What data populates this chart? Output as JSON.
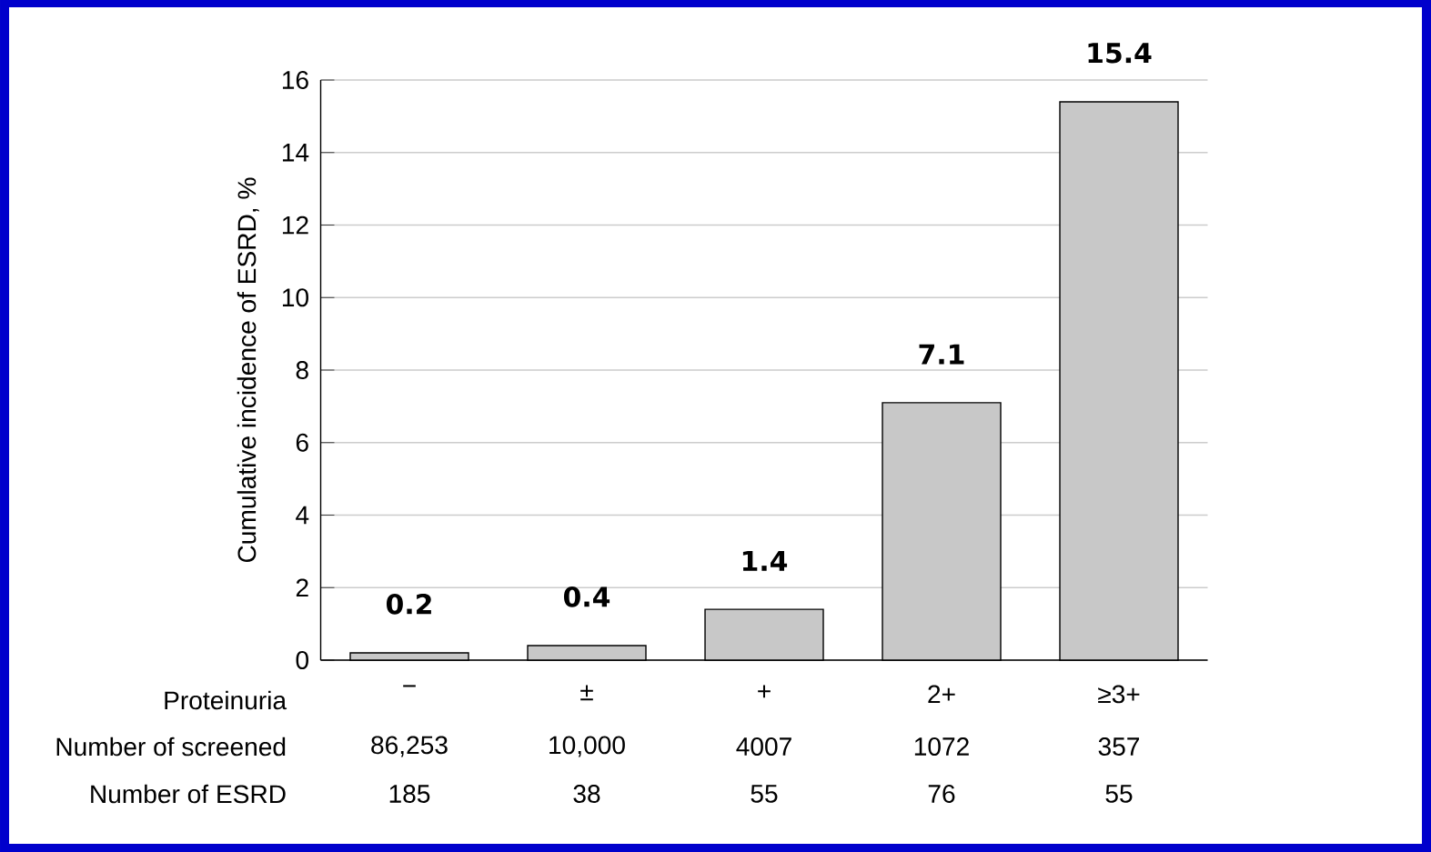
{
  "chart_data": {
    "type": "bar",
    "ylabel": "Cumulative incidence of ESRD, %",
    "xlabel": "Proteinuria",
    "categories": [
      "−",
      "±",
      "+",
      "2+",
      "≥3+"
    ],
    "values": [
      0.2,
      0.4,
      1.4,
      7.1,
      15.4
    ],
    "color": "#c8c8c8",
    "data_labels": true,
    "ylim": [
      0,
      16
    ],
    "yticks": [
      0,
      2,
      4,
      6,
      8,
      10,
      12,
      14,
      16
    ],
    "grid": "y",
    "annotations": [
      "Number of screened",
      "86,253",
      "10,000",
      "4007",
      "1072",
      "357",
      "Number of ESRD",
      "185",
      "38",
      "55",
      "76",
      "55"
    ]
  }
}
